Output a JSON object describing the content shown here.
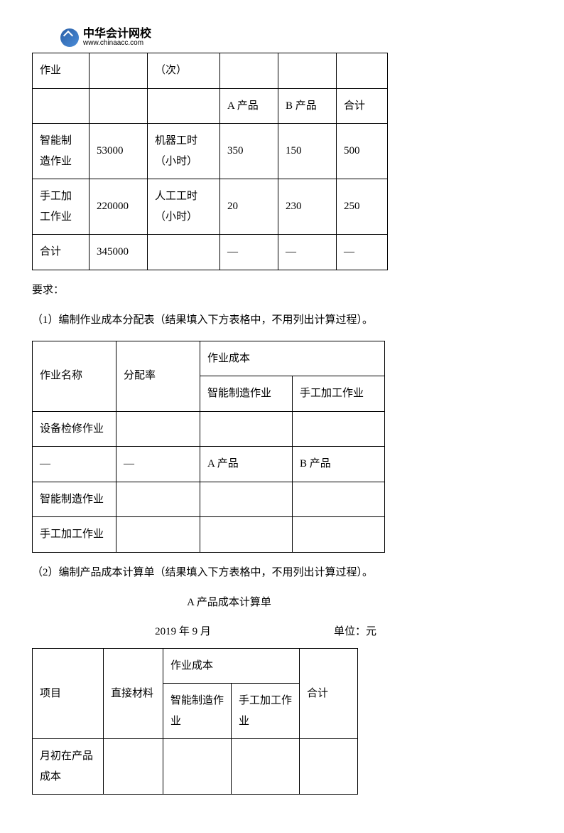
{
  "logo": {
    "brand_cn": "中华会计网校",
    "brand_url": "www.chinaacc.com"
  },
  "table1": {
    "rows": [
      [
        "作业",
        "",
        "（次）",
        "",
        "",
        ""
      ],
      [
        "",
        "",
        "",
        "A 产品",
        "B 产品",
        "合计"
      ],
      [
        "智能制造作业",
        "53000",
        "机器工时（小时）",
        "350",
        "150",
        "500"
      ],
      [
        "手工加工作业",
        "220000",
        "人工工时（小时）",
        "20",
        "230",
        "250"
      ],
      [
        "合计",
        "345000",
        "",
        "—",
        "—",
        "—"
      ]
    ]
  },
  "req_label": "要求：",
  "req1": "（1）编制作业成本分配表（结果填入下方表格中，不用列出计算过程）。",
  "table2": {
    "r1c1": "作业名称",
    "r1c2": "分配率",
    "r1c3": "作业成本",
    "r2c3": "智能制造作业",
    "r2c4": "手工加工作业",
    "r3c1": "设备检修作业",
    "r4c1": "—",
    "r4c2": "—",
    "r4c3": "A 产品",
    "r4c4": "B 产品",
    "r5c1": "智能制造作业",
    "r6c1": "手工加工作业"
  },
  "req2": "（2）编制产品成本计算单（结果填入下方表格中，不用列出计算过程）。",
  "t3_title": "A 产品成本计算单",
  "t3_date": "2019 年 9 月",
  "t3_unit": "单位：元",
  "table3": {
    "r1c1": "项目",
    "r1c2": "直接材料",
    "r1c3": "作业成本",
    "r1c4": "合计",
    "r2c3a": "智能制造作业",
    "r2c3b": "手工加工作业",
    "r3c1": "月初在产品成本"
  },
  "colors": {
    "text": "#000000",
    "border": "#000000",
    "background": "#ffffff",
    "logo_bg": "#2b5fa6"
  }
}
